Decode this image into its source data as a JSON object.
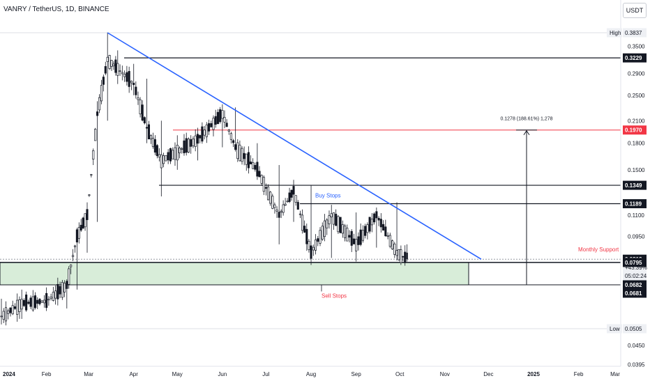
{
  "header": {
    "symbol_title": "VANRY / TetherUS, 1D, BINANCE",
    "currency": "USDT"
  },
  "chart_data": {
    "type": "candlestick",
    "title": "VANRY / TetherUS, 1D, BINANCE",
    "xlabel": "",
    "ylabel": "",
    "y_scale": "log",
    "grid": false,
    "x_tick_labels": [
      "2024",
      "Feb",
      "Mar",
      "Apr",
      "May",
      "Jun",
      "Jul",
      "Aug",
      "Sep",
      "Oct",
      "Nov",
      "Dec",
      "2025",
      "Feb",
      "Mar"
    ],
    "y_tick_labels": [
      "0.3500",
      "0.2900",
      "0.2500",
      "0.2100",
      "0.1800",
      "0.1500",
      "0.1100",
      "0.0950",
      "0.0450",
      "0.0395"
    ],
    "price_labels": [
      {
        "prefix": "High",
        "value": "0.3837",
        "style": "plain"
      },
      {
        "prefix": "",
        "value": "0.3229",
        "style": "dark"
      },
      {
        "prefix": "",
        "value": "0.1970",
        "style": "red"
      },
      {
        "prefix": "",
        "value": "0.1349",
        "style": "dark"
      },
      {
        "prefix": "",
        "value": "0.1189",
        "style": "dark"
      },
      {
        "prefix": "",
        "value": "0.0813",
        "style": "dark"
      },
      {
        "prefix": "",
        "value": "+43.39%",
        "style": "plain"
      },
      {
        "prefix": "",
        "value": "05:02:24",
        "style": "plain"
      },
      {
        "prefix": "",
        "value": "0.0795",
        "style": "dark"
      },
      {
        "prefix": "",
        "value": "0.0682",
        "style": "dark"
      },
      {
        "prefix": "",
        "value": "0.0681",
        "style": "dark"
      },
      {
        "prefix": "Low",
        "value": "0.0505",
        "style": "plain"
      }
    ],
    "series": [
      {
        "ohlc": [
          {
            "date": "2024-01-01",
            "open": 0.058,
            "high": 0.062,
            "low": 0.052,
            "close": 0.055
          },
          {
            "date": "2024-01-15",
            "open": 0.055,
            "high": 0.066,
            "low": 0.054,
            "close": 0.06
          },
          {
            "date": "2024-02-01",
            "open": 0.06,
            "high": 0.067,
            "low": 0.057,
            "close": 0.061
          },
          {
            "date": "2024-02-15",
            "open": 0.061,
            "high": 0.07,
            "low": 0.058,
            "close": 0.068
          },
          {
            "date": "2024-02-22",
            "open": 0.068,
            "high": 0.1,
            "low": 0.066,
            "close": 0.095
          },
          {
            "date": "2024-02-29",
            "open": 0.095,
            "high": 0.12,
            "low": 0.085,
            "close": 0.11
          },
          {
            "date": "2024-03-07",
            "open": 0.11,
            "high": 0.24,
            "low": 0.105,
            "close": 0.22
          },
          {
            "date": "2024-03-14",
            "open": 0.22,
            "high": 0.384,
            "low": 0.21,
            "close": 0.32
          },
          {
            "date": "2024-03-21",
            "open": 0.32,
            "high": 0.34,
            "low": 0.27,
            "close": 0.3
          },
          {
            "date": "2024-04-01",
            "open": 0.3,
            "high": 0.31,
            "low": 0.25,
            "close": 0.27
          },
          {
            "date": "2024-04-10",
            "open": 0.27,
            "high": 0.28,
            "low": 0.18,
            "close": 0.2
          },
          {
            "date": "2024-04-20",
            "open": 0.2,
            "high": 0.21,
            "low": 0.125,
            "close": 0.16
          },
          {
            "date": "2024-05-01",
            "open": 0.16,
            "high": 0.19,
            "low": 0.15,
            "close": 0.17
          },
          {
            "date": "2024-05-15",
            "open": 0.17,
            "high": 0.2,
            "low": 0.16,
            "close": 0.185
          },
          {
            "date": "2024-06-01",
            "open": 0.185,
            "high": 0.235,
            "low": 0.175,
            "close": 0.22
          },
          {
            "date": "2024-06-10",
            "open": 0.22,
            "high": 0.23,
            "low": 0.17,
            "close": 0.175
          },
          {
            "date": "2024-06-25",
            "open": 0.175,
            "high": 0.18,
            "low": 0.14,
            "close": 0.15
          },
          {
            "date": "2024-07-10",
            "open": 0.15,
            "high": 0.155,
            "low": 0.09,
            "close": 0.11
          },
          {
            "date": "2024-07-20",
            "open": 0.11,
            "high": 0.14,
            "low": 0.105,
            "close": 0.13
          },
          {
            "date": "2024-08-01",
            "open": 0.13,
            "high": 0.135,
            "low": 0.08,
            "close": 0.085
          },
          {
            "date": "2024-08-15",
            "open": 0.085,
            "high": 0.118,
            "low": 0.082,
            "close": 0.11
          },
          {
            "date": "2024-09-01",
            "open": 0.11,
            "high": 0.112,
            "low": 0.08,
            "close": 0.09
          },
          {
            "date": "2024-09-15",
            "open": 0.09,
            "high": 0.115,
            "low": 0.088,
            "close": 0.11
          },
          {
            "date": "2024-09-29",
            "open": 0.11,
            "high": 0.12,
            "low": 0.082,
            "close": 0.085
          },
          {
            "date": "2024-10-06",
            "open": 0.085,
            "high": 0.09,
            "low": 0.08,
            "close": 0.0813
          }
        ]
      }
    ],
    "annotations": [
      {
        "type": "trendline",
        "color": "#2962ff",
        "from": {
          "date": "2024-03-14",
          "price": 0.3837
        },
        "to": {
          "date": "2024-11-26",
          "price": 0.0813
        }
      },
      {
        "type": "hline",
        "price": 0.3229,
        "color": "#131722"
      },
      {
        "type": "hline",
        "price": 0.197,
        "color": "#f23645"
      },
      {
        "type": "hline",
        "price": 0.1349,
        "color": "#131722"
      },
      {
        "type": "hline",
        "price": 0.1189,
        "color": "#131722"
      },
      {
        "type": "zone",
        "from_price": 0.0795,
        "to_price": 0.0682,
        "color": "#c8e6c9"
      },
      {
        "type": "measure",
        "label": "0.1278 (188.61%) 1,278"
      }
    ],
    "text_annotations": [
      {
        "text": "Buy Stops",
        "color": "#2962ff"
      },
      {
        "text": "Sell Stops",
        "color": "#f23645"
      },
      {
        "text": "Monthly Support",
        "color": "#f23645"
      }
    ]
  }
}
